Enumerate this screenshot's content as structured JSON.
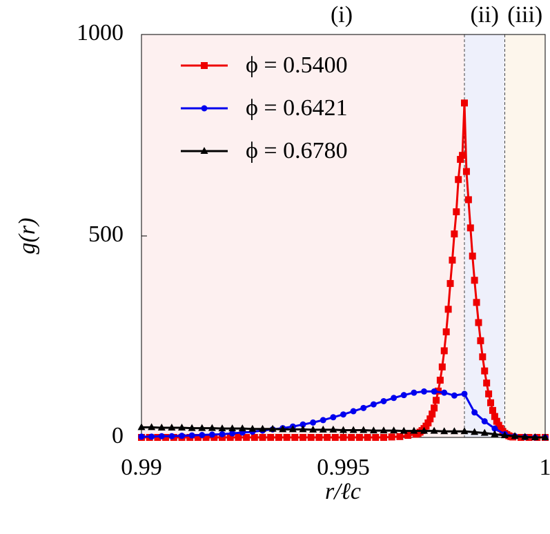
{
  "chart_data": {
    "type": "line",
    "xlabel": "r/ℓc",
    "ylabel": "g(r)",
    "xlim": [
      0.99,
      1
    ],
    "ylim": [
      0,
      1000
    ],
    "xticks": [
      0.99,
      0.995,
      1
    ],
    "yticks": [
      0,
      500,
      1000
    ],
    "legend": "upper left",
    "regions": [
      {
        "label": "(i)",
        "range": [
          0.99,
          0.998
        ],
        "color": "#fdf0f0"
      },
      {
        "label": "(ii)",
        "range": [
          0.998,
          0.999
        ],
        "color": "#eef0fb"
      },
      {
        "label": "(iii)",
        "range": [
          0.999,
          1
        ],
        "color": "#fdf6ec"
      }
    ],
    "series": [
      {
        "name": "ϕ = 0.5400",
        "color": "#ee0000",
        "marker": "square",
        "x": [
          0.99,
          0.9902,
          0.9904,
          0.9906,
          0.9908,
          0.991,
          0.9912,
          0.9914,
          0.9916,
          0.9918,
          0.992,
          0.9922,
          0.9924,
          0.9926,
          0.9928,
          0.993,
          0.9932,
          0.9934,
          0.9936,
          0.9938,
          0.994,
          0.9942,
          0.9944,
          0.9946,
          0.9948,
          0.995,
          0.9952,
          0.9954,
          0.9956,
          0.9958,
          0.996,
          0.9962,
          0.9964,
          0.9966,
          0.9968,
          0.99685,
          0.9969,
          0.99695,
          0.997,
          0.99705,
          0.9971,
          0.99715,
          0.9972,
          0.99725,
          0.9973,
          0.99735,
          0.9974,
          0.99745,
          0.9975,
          0.99755,
          0.9976,
          0.99765,
          0.9977,
          0.99775,
          0.9978,
          0.99785,
          0.9979,
          0.99795,
          0.998,
          0.99805,
          0.9981,
          0.99815,
          0.9982,
          0.99825,
          0.9983,
          0.99835,
          0.9984,
          0.99845,
          0.9985,
          0.99855,
          0.9986,
          0.99865,
          0.9987,
          0.99875,
          0.9988,
          0.99885,
          0.9989,
          0.99895,
          0.999,
          0.99905,
          0.9991,
          0.99915,
          0.9992,
          0.9994,
          0.9996,
          0.9998,
          1
        ],
        "values": [
          0,
          0,
          0,
          0,
          0,
          0,
          0,
          0,
          0,
          0,
          0,
          0,
          0,
          0,
          0,
          0,
          0,
          0,
          0,
          0,
          0,
          0,
          0,
          0,
          0,
          0,
          0,
          0,
          0,
          0,
          0,
          1,
          2,
          5,
          8,
          10,
          13,
          17,
          22,
          28,
          36,
          46,
          58,
          73,
          92,
          115,
          142,
          175,
          215,
          262,
          318,
          382,
          440,
          505,
          560,
          640,
          690,
          700,
          830,
          660,
          590,
          520,
          450,
          390,
          335,
          285,
          240,
          200,
          165,
          135,
          108,
          86,
          67,
          52,
          40,
          30,
          22,
          15,
          10,
          7,
          4,
          2,
          1,
          0,
          0,
          0,
          0
        ]
      },
      {
        "name": "ϕ = 0.6421",
        "color": "#0000ee",
        "marker": "circle",
        "x": [
          0.99,
          0.99025,
          0.9905,
          0.99075,
          0.991,
          0.99125,
          0.9915,
          0.99175,
          0.992,
          0.99225,
          0.9925,
          0.99275,
          0.993,
          0.99325,
          0.9935,
          0.99375,
          0.994,
          0.99425,
          0.9945,
          0.99475,
          0.995,
          0.99525,
          0.9955,
          0.99575,
          0.996,
          0.99625,
          0.9965,
          0.99675,
          0.997,
          0.99725,
          0.9975,
          0.99775,
          0.998,
          0.99825,
          0.9985,
          0.99875,
          0.999,
          0.99925,
          0.9995,
          0.99975,
          1
        ],
        "values": [
          2,
          2,
          3,
          3,
          4,
          5,
          6,
          7,
          8,
          10,
          12,
          14,
          17,
          20,
          23,
          27,
          32,
          37,
          43,
          50,
          57,
          65,
          73,
          82,
          90,
          98,
          105,
          111,
          114,
          114,
          111,
          104,
          108,
          62,
          40,
          22,
          8,
          3,
          1,
          0,
          0
        ]
      },
      {
        "name": "ϕ = 0.6780",
        "color": "#000000",
        "marker": "triangle",
        "x": [
          0.99,
          0.99025,
          0.9905,
          0.99075,
          0.991,
          0.99125,
          0.9915,
          0.99175,
          0.992,
          0.99225,
          0.9925,
          0.99275,
          0.993,
          0.99325,
          0.9935,
          0.99375,
          0.994,
          0.99425,
          0.9945,
          0.99475,
          0.995,
          0.99525,
          0.9955,
          0.99575,
          0.996,
          0.99625,
          0.9965,
          0.99675,
          0.997,
          0.99725,
          0.9975,
          0.99775,
          0.998,
          0.99825,
          0.9985,
          0.99875,
          0.999,
          0.99925,
          0.9995,
          0.99975,
          1
        ],
        "values": [
          25,
          25,
          24,
          24,
          24,
          23,
          23,
          23,
          22,
          22,
          22,
          21,
          21,
          21,
          20,
          20,
          20,
          19,
          19,
          19,
          18,
          18,
          18,
          17,
          17,
          17,
          16,
          16,
          16,
          16,
          15,
          15,
          15,
          13,
          11,
          8,
          5,
          3,
          1,
          0,
          0
        ]
      }
    ]
  }
}
